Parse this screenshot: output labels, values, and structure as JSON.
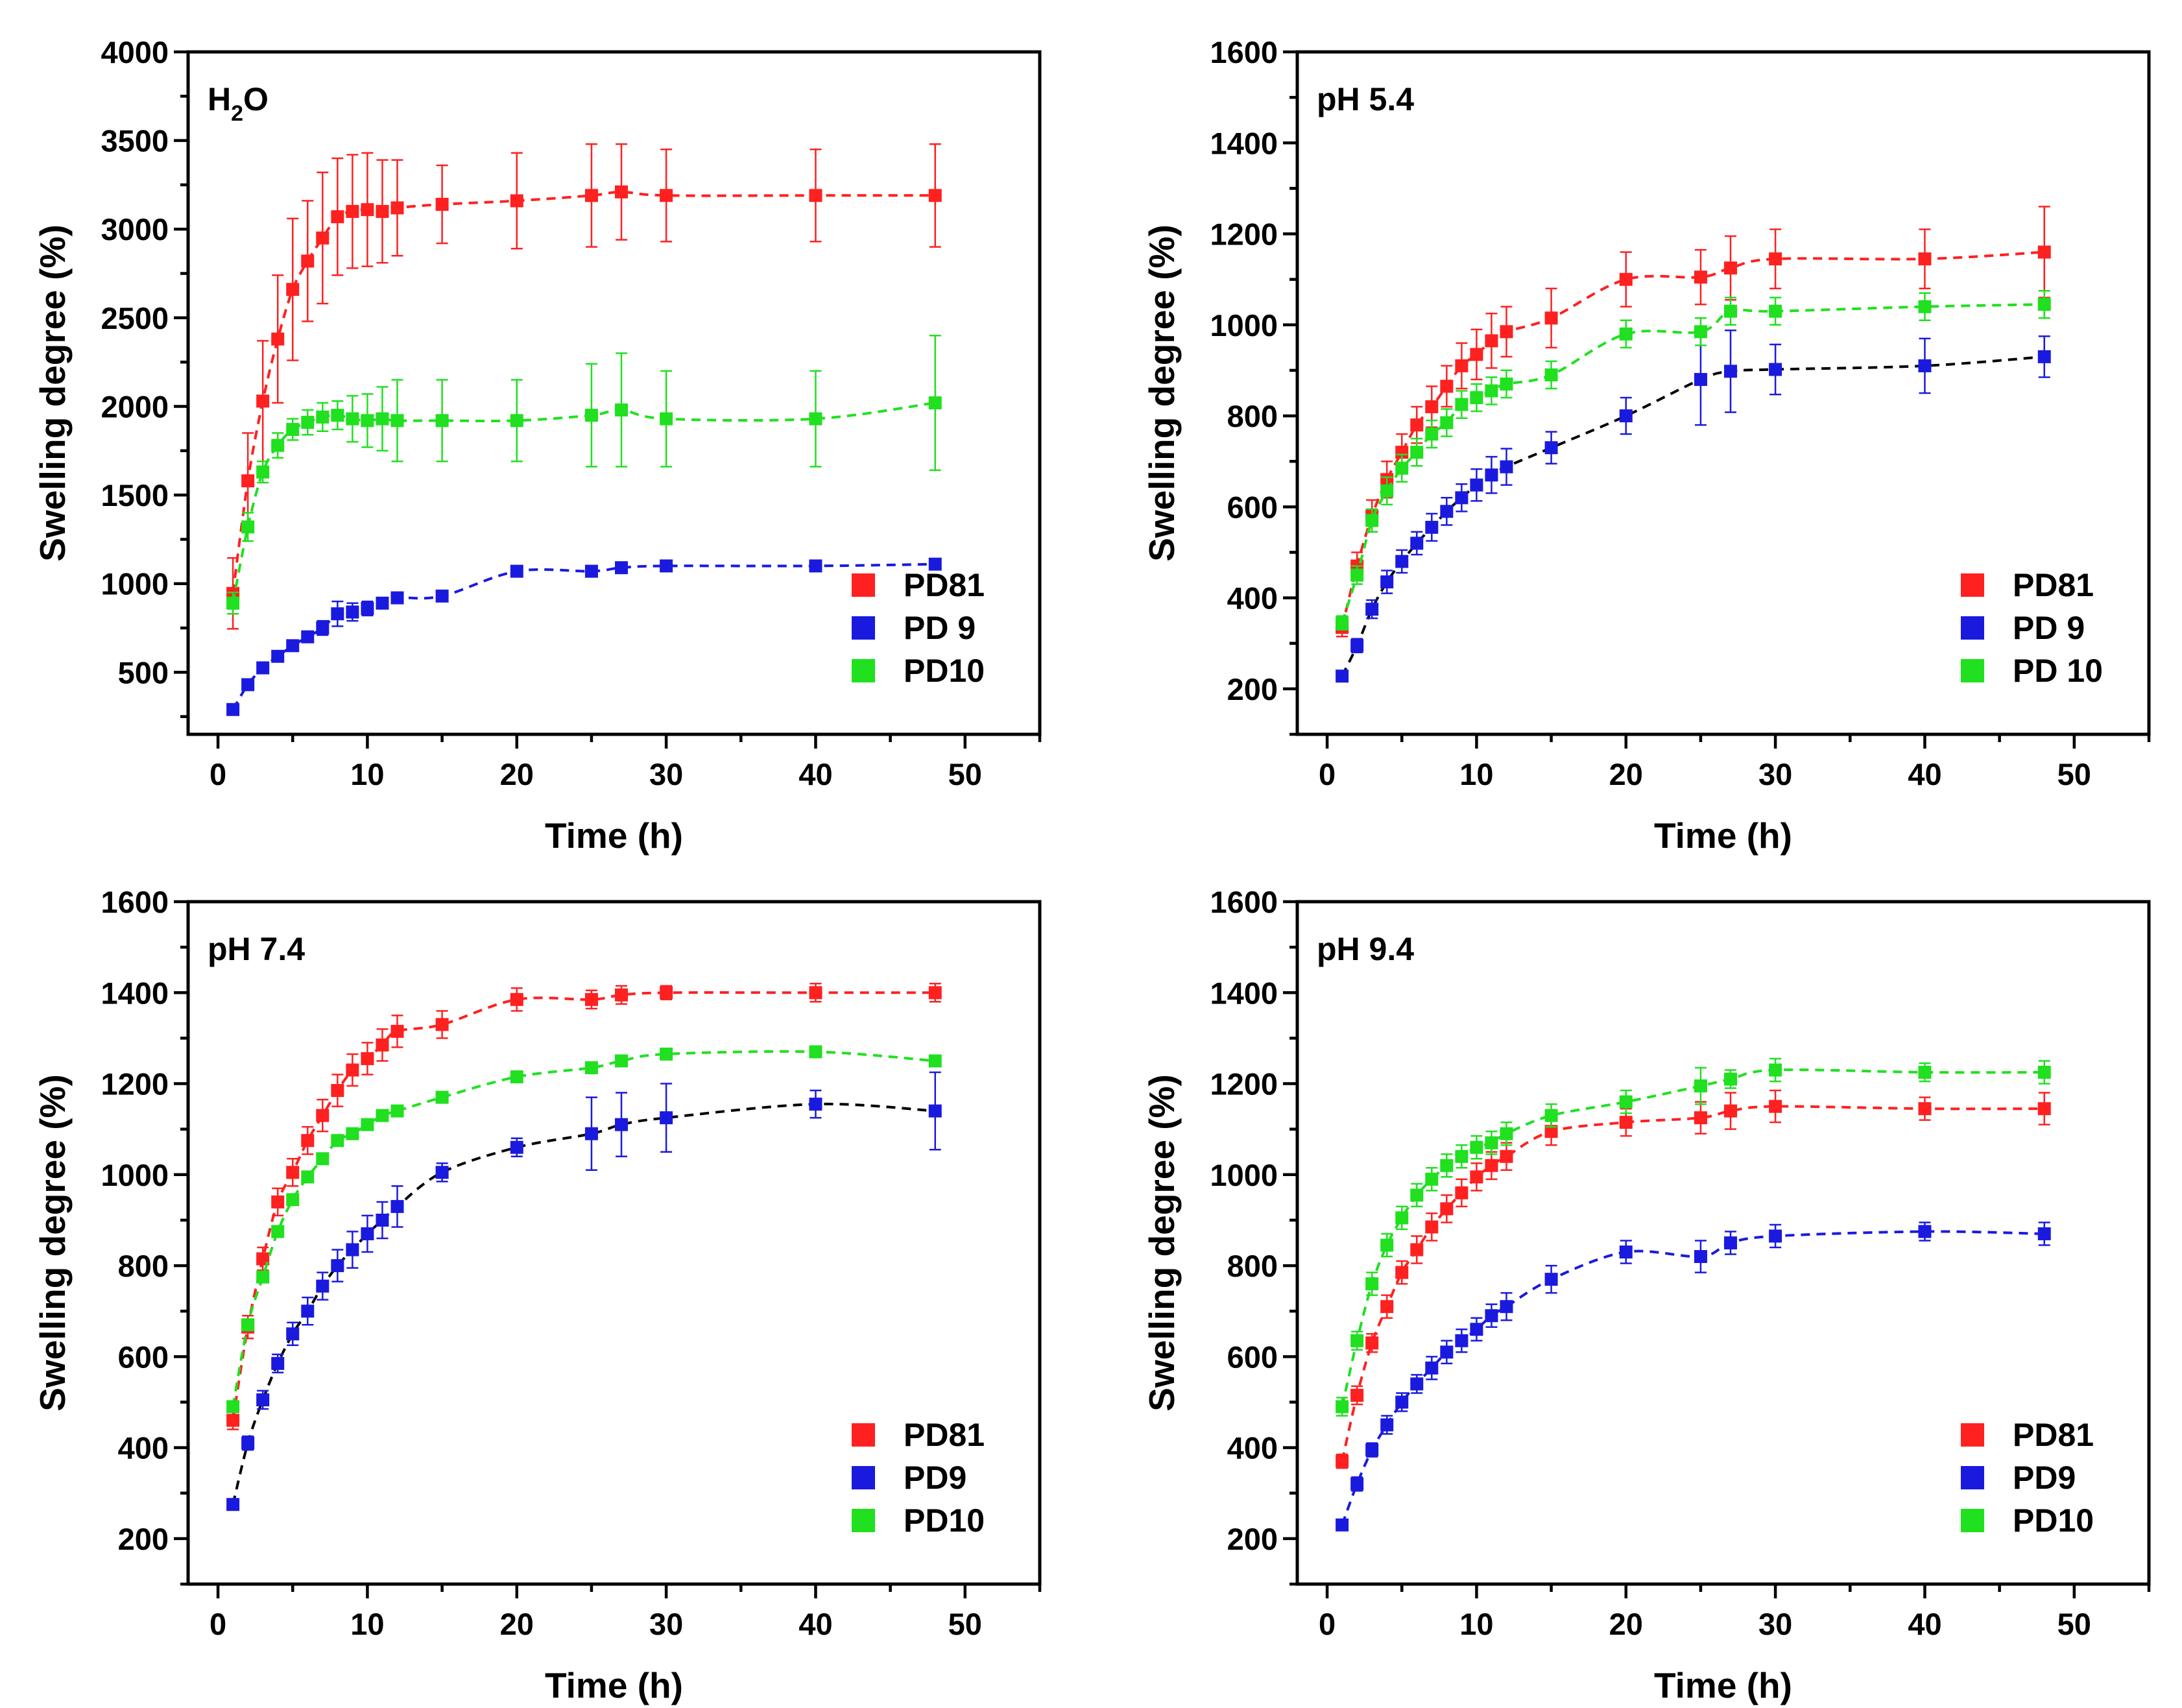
{
  "chart_data": [
    {
      "type": "scatter",
      "title": "H2O",
      "title_parts": {
        "base": "H",
        "sub": "2",
        "rest": "O"
      },
      "xlabel": "Time (h)",
      "ylabel": "Swelling degree (%)",
      "xlim": [
        -2,
        55
      ],
      "ylim": [
        150,
        4000
      ],
      "xticks": [
        0,
        10,
        20,
        30,
        40,
        50
      ],
      "yticks": [
        500,
        1000,
        1500,
        2000,
        2500,
        3000,
        3500,
        4000
      ],
      "legend_position": "bottom-right",
      "grid": false,
      "x": [
        1,
        2,
        3,
        4,
        5,
        6,
        7,
        8,
        9,
        10,
        11,
        12,
        15,
        20,
        25,
        27,
        30,
        40,
        48
      ],
      "series": [
        {
          "name": "PD81",
          "color": "#ff2020",
          "fit_color": "#ff2020",
          "values": [
            945,
            1580,
            2030,
            2380,
            2660,
            2820,
            2950,
            3070,
            3100,
            3110,
            3100,
            3120,
            3140,
            3160,
            3190,
            3210,
            3190,
            3190,
            3190
          ],
          "errors": [
            200,
            270,
            340,
            360,
            400,
            340,
            370,
            330,
            320,
            320,
            290,
            270,
            220,
            270,
            290,
            270,
            260,
            260,
            290
          ]
        },
        {
          "name": "PD 9",
          "color": "#1a1adf",
          "fit_color": "#1a1adf",
          "values": [
            290,
            430,
            525,
            590,
            650,
            700,
            750,
            830,
            840,
            860,
            890,
            920,
            930,
            1070,
            1070,
            1090,
            1100,
            1100,
            1110
          ],
          "errors": [
            15,
            20,
            20,
            20,
            25,
            30,
            40,
            70,
            50,
            40,
            30,
            30,
            30,
            25,
            25,
            25,
            20,
            20,
            20
          ]
        },
        {
          "name": "PD10",
          "color": "#20e020",
          "fit_color": "#20e020",
          "values": [
            890,
            1320,
            1630,
            1780,
            1870,
            1910,
            1940,
            1950,
            1930,
            1920,
            1930,
            1920,
            1920,
            1920,
            1950,
            1980,
            1930,
            1930,
            2020
          ],
          "errors": [
            60,
            80,
            60,
            70,
            60,
            70,
            80,
            80,
            130,
            150,
            180,
            230,
            230,
            230,
            290,
            320,
            270,
            270,
            380
          ]
        }
      ]
    },
    {
      "type": "scatter",
      "title": "pH 5.4",
      "xlabel": "Time (h)",
      "ylabel": "Swelling degree (%)",
      "xlim": [
        -2,
        55
      ],
      "ylim": [
        100,
        1600
      ],
      "xticks": [
        0,
        10,
        20,
        30,
        40,
        50
      ],
      "yticks": [
        200,
        400,
        600,
        800,
        1000,
        1200,
        1400,
        1600
      ],
      "legend_position": "bottom-right",
      "grid": false,
      "x": [
        1,
        2,
        3,
        4,
        5,
        6,
        7,
        8,
        9,
        10,
        11,
        12,
        15,
        20,
        25,
        27,
        30,
        40,
        48
      ],
      "series": [
        {
          "name": "PD81",
          "color": "#ff2020",
          "fit_color": "#ff2020",
          "values": [
            335,
            470,
            580,
            660,
            720,
            780,
            820,
            865,
            910,
            935,
            965,
            985,
            1015,
            1100,
            1105,
            1125,
            1145,
            1145,
            1160
          ],
          "errors": [
            20,
            30,
            35,
            40,
            40,
            40,
            45,
            45,
            50,
            55,
            60,
            55,
            65,
            60,
            60,
            70,
            65,
            65,
            100
          ]
        },
        {
          "name": "PD 9",
          "color": "#1a1adf",
          "fit_color": "#000000",
          "values": [
            228,
            295,
            375,
            435,
            480,
            520,
            555,
            590,
            620,
            648,
            670,
            688,
            730,
            800,
            880,
            898,
            902,
            910,
            930
          ],
          "errors": [
            10,
            15,
            20,
            25,
            25,
            25,
            30,
            30,
            30,
            35,
            40,
            40,
            35,
            40,
            100,
            90,
            55,
            60,
            45
          ]
        },
        {
          "name": "PD 10",
          "color": "#20e020",
          "fit_color": "#20e020",
          "values": [
            345,
            450,
            570,
            635,
            685,
            720,
            760,
            785,
            825,
            840,
            855,
            870,
            890,
            980,
            985,
            1030,
            1030,
            1040,
            1045
          ],
          "errors": [
            15,
            20,
            25,
            30,
            30,
            30,
            30,
            30,
            30,
            30,
            30,
            30,
            30,
            30,
            30,
            30,
            30,
            30,
            30
          ]
        }
      ]
    },
    {
      "type": "scatter",
      "title": "pH 7.4",
      "xlabel": "Time (h)",
      "ylabel": "Swelling degree (%)",
      "xlim": [
        -2,
        55
      ],
      "ylim": [
        100,
        1600
      ],
      "xticks": [
        0,
        10,
        20,
        30,
        40,
        50
      ],
      "yticks": [
        200,
        400,
        600,
        800,
        1000,
        1200,
        1400,
        1600
      ],
      "legend_position": "bottom-right",
      "grid": false,
      "x": [
        1,
        2,
        3,
        4,
        5,
        6,
        7,
        8,
        9,
        10,
        11,
        12,
        15,
        20,
        25,
        27,
        30,
        40,
        48
      ],
      "series": [
        {
          "name": "PD81",
          "color": "#ff2020",
          "fit_color": "#ff2020",
          "values": [
            460,
            665,
            815,
            940,
            1005,
            1075,
            1130,
            1185,
            1230,
            1255,
            1285,
            1315,
            1330,
            1385,
            1385,
            1395,
            1400,
            1400,
            1400
          ],
          "errors": [
            20,
            25,
            25,
            30,
            30,
            30,
            35,
            35,
            35,
            35,
            35,
            35,
            30,
            25,
            20,
            20,
            15,
            20,
            20
          ]
        },
        {
          "name": "PD9",
          "color": "#1a1adf",
          "fit_color": "#000000",
          "values": [
            275,
            410,
            505,
            585,
            650,
            700,
            755,
            800,
            835,
            870,
            900,
            930,
            1005,
            1060,
            1090,
            1110,
            1125,
            1155,
            1140
          ],
          "errors": [
            10,
            15,
            20,
            20,
            25,
            30,
            30,
            35,
            40,
            40,
            40,
            45,
            20,
            20,
            80,
            70,
            75,
            30,
            85
          ]
        },
        {
          "name": "PD10",
          "color": "#20e020",
          "fit_color": "#20e020",
          "values": [
            490,
            670,
            775,
            875,
            945,
            995,
            1035,
            1075,
            1090,
            1110,
            1130,
            1140,
            1170,
            1215,
            1235,
            1250,
            1265,
            1270,
            1250
          ]
        }
      ]
    },
    {
      "type": "scatter",
      "title": "pH 9.4",
      "xlabel": "Time (h)",
      "ylabel": "Swelling degree (%)",
      "xlim": [
        -2,
        55
      ],
      "ylim": [
        100,
        1600
      ],
      "xticks": [
        0,
        10,
        20,
        30,
        40,
        50
      ],
      "yticks": [
        200,
        400,
        600,
        800,
        1000,
        1200,
        1400,
        1600
      ],
      "legend_position": "bottom-right",
      "grid": false,
      "x": [
        1,
        2,
        3,
        4,
        5,
        6,
        7,
        8,
        9,
        10,
        11,
        12,
        15,
        20,
        25,
        27,
        30,
        40,
        48
      ],
      "series": [
        {
          "name": "PD81",
          "color": "#ff2020",
          "fit_color": "#ff2020",
          "values": [
            370,
            515,
            630,
            710,
            785,
            835,
            885,
            925,
            960,
            995,
            1020,
            1040,
            1095,
            1115,
            1125,
            1140,
            1150,
            1145,
            1145
          ],
          "errors": [
            15,
            20,
            20,
            25,
            25,
            30,
            30,
            30,
            30,
            30,
            30,
            30,
            30,
            30,
            35,
            40,
            35,
            25,
            35
          ]
        },
        {
          "name": "PD9",
          "color": "#1a1adf",
          "fit_color": "#1a1adf",
          "values": [
            230,
            320,
            395,
            450,
            500,
            540,
            575,
            610,
            635,
            660,
            690,
            710,
            770,
            830,
            820,
            850,
            865,
            875,
            870
          ],
          "errors": [
            10,
            15,
            15,
            20,
            20,
            20,
            25,
            25,
            25,
            25,
            25,
            30,
            30,
            25,
            35,
            25,
            25,
            20,
            25
          ]
        },
        {
          "name": "PD10",
          "color": "#20e020",
          "fit_color": "#20e020",
          "values": [
            490,
            635,
            760,
            845,
            905,
            955,
            990,
            1020,
            1040,
            1060,
            1070,
            1090,
            1130,
            1160,
            1195,
            1210,
            1230,
            1225,
            1225
          ],
          "errors": [
            20,
            20,
            25,
            25,
            25,
            25,
            25,
            25,
            25,
            25,
            25,
            25,
            25,
            25,
            40,
            20,
            25,
            20,
            25
          ]
        }
      ]
    }
  ]
}
